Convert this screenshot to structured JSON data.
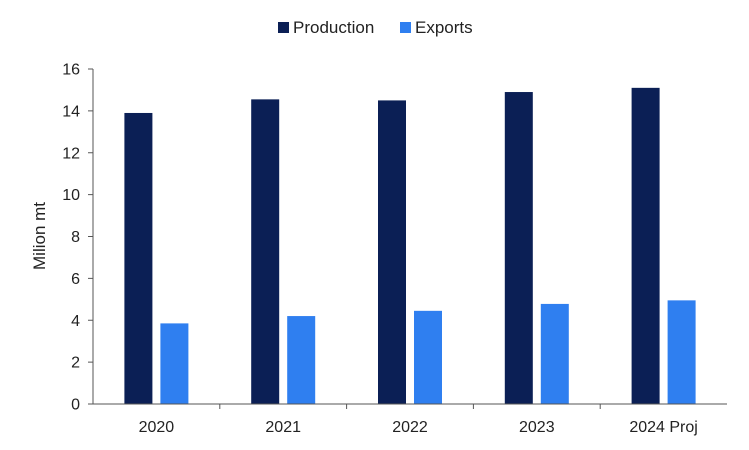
{
  "chart_data": {
    "type": "bar",
    "categories": [
      "2020",
      "2021",
      "2022",
      "2023",
      "2024 Proj"
    ],
    "series": [
      {
        "name": "Production",
        "values": [
          13.9,
          14.55,
          14.5,
          14.9,
          15.1
        ],
        "color": "#0b1f55"
      },
      {
        "name": "Exports",
        "values": [
          3.85,
          4.2,
          4.45,
          4.78,
          4.95
        ],
        "color": "#2f7ff0"
      }
    ],
    "title": "",
    "xlabel": "",
    "ylabel": "Milion mt",
    "ylim": [
      0,
      16
    ],
    "yticks": [
      "0",
      "2",
      "4",
      "6",
      "8",
      "10",
      "12",
      "14",
      "16"
    ],
    "grid": false,
    "legend_position": "top-center"
  }
}
